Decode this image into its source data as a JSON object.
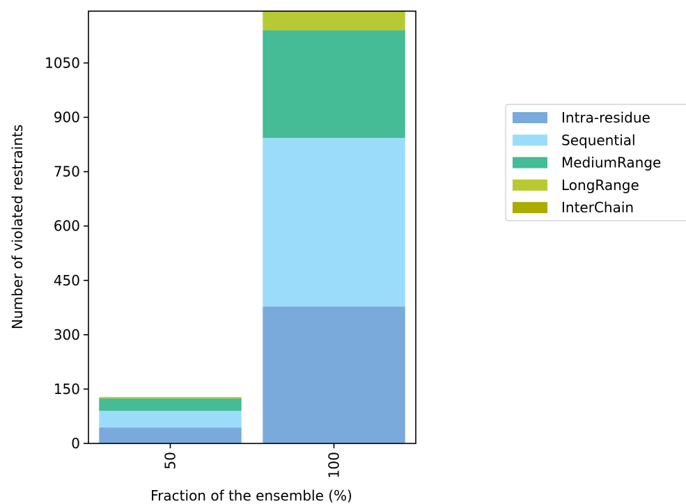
{
  "chart_data": {
    "type": "bar",
    "stacked": true,
    "categories": [
      "50",
      "100"
    ],
    "series": [
      {
        "name": "Intra-residue",
        "color": "#7aaadb",
        "values": [
          44,
          378
        ]
      },
      {
        "name": "Sequential",
        "color": "#9cdcfb",
        "values": [
          46,
          465
        ]
      },
      {
        "name": "MediumRange",
        "color": "#45bb96",
        "values": [
          34,
          297
        ]
      },
      {
        "name": "LongRange",
        "color": "#b7ca33",
        "values": [
          4,
          53
        ]
      },
      {
        "name": "InterChain",
        "color": "#abab00",
        "values": [
          0,
          0
        ]
      }
    ],
    "xlabel": "Fraction of the ensemble (%)",
    "ylabel": "Number of violated restraints",
    "ylim": [
      0,
      1193
    ],
    "yticks": [
      0,
      150,
      300,
      450,
      600,
      750,
      900,
      1050
    ],
    "ytick_labels": [
      "0",
      "150",
      "300",
      "450",
      "600",
      "750",
      "900",
      "1050"
    ],
    "xtick_rotation": "vertical",
    "grid": false,
    "legend_position": "outside right"
  }
}
